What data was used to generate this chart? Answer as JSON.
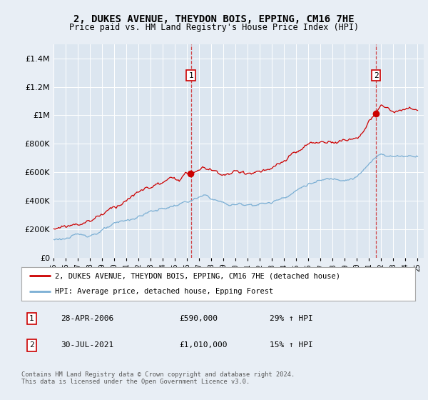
{
  "title": "2, DUKES AVENUE, THEYDON BOIS, EPPING, CM16 7HE",
  "subtitle": "Price paid vs. HM Land Registry's House Price Index (HPI)",
  "legend_line1": "2, DUKES AVENUE, THEYDON BOIS, EPPING, CM16 7HE (detached house)",
  "legend_line2": "HPI: Average price, detached house, Epping Forest",
  "sale1_label": "1",
  "sale1_date": "28-APR-2006",
  "sale1_price": "£590,000",
  "sale1_hpi": "29% ↑ HPI",
  "sale2_label": "2",
  "sale2_date": "30-JUL-2021",
  "sale2_price": "£1,010,000",
  "sale2_hpi": "15% ↑ HPI",
  "footer": "Contains HM Land Registry data © Crown copyright and database right 2024.\nThis data is licensed under the Open Government Licence v3.0.",
  "sale1_year": 2006.32,
  "sale1_value": 590000,
  "sale2_year": 2021.58,
  "sale2_value": 1010000,
  "hpi_color": "#7bafd4",
  "price_color": "#cc0000",
  "sale_dot_color": "#cc0000",
  "bg_color": "#e8eef5",
  "plot_bg": "#dce6f0",
  "grid_color": "#c8d8e8",
  "ylim": [
    0,
    1500000
  ],
  "xlim_start": 1995,
  "xlim_end": 2025.5
}
